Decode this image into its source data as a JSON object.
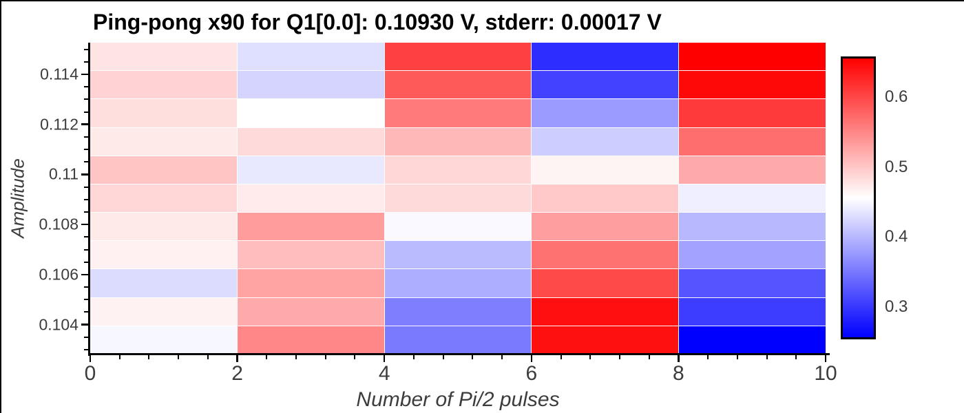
{
  "title": "Ping-pong x90 for Q1[0.0]: 0.10930 V, stderr: 0.00017 V",
  "colors": {
    "background": "#ffffff",
    "spine": "#000000",
    "title_text": "#000000",
    "label_text": "#3c3c3c",
    "frame_border": "#000000",
    "cell_seam": "#ffffff"
  },
  "chart_data": {
    "type": "heatmap",
    "title": "Ping-pong x90 for Q1[0.0]: 0.10930 V, stderr: 0.00017 V",
    "xlabel": "Number of Pi/2 pulses",
    "ylabel": "Amplitude",
    "colormap": "bwr",
    "vmin": 0.254,
    "vmax": 0.658,
    "x_range": [
      0,
      10
    ],
    "y_range": [
      0.102835,
      0.115265
    ],
    "x_ticks": [
      0,
      2,
      4,
      6,
      8,
      10
    ],
    "x_tick_labels": [
      "0",
      "2",
      "4",
      "6",
      "8",
      "10"
    ],
    "x_minor_step": 0.4,
    "y_ticks": [
      0.104,
      0.106,
      0.108,
      0.11,
      0.112,
      0.114
    ],
    "y_tick_labels": [
      "0.104",
      "0.106",
      "0.108",
      "0.11",
      "0.112",
      "0.114"
    ],
    "y_minor_step": 0.0005,
    "x_centers": [
      1,
      3,
      5,
      7,
      9
    ],
    "amplitudes_top_to_bottom": [
      0.1147,
      0.11357,
      0.11244,
      0.11131,
      0.11018,
      0.10905,
      0.10792,
      0.10679,
      0.10566,
      0.10453,
      0.1034
    ],
    "values": [
      [
        0.477,
        0.431,
        0.607,
        0.29,
        0.658
      ],
      [
        0.491,
        0.422,
        0.587,
        0.307,
        0.652
      ],
      [
        0.482,
        0.456,
        0.561,
        0.376,
        0.612
      ],
      [
        0.473,
        0.485,
        0.512,
        0.416,
        0.571
      ],
      [
        0.502,
        0.438,
        0.488,
        0.465,
        0.523
      ],
      [
        0.488,
        0.472,
        0.485,
        0.499,
        0.443
      ],
      [
        0.473,
        0.534,
        0.451,
        0.533,
        0.4
      ],
      [
        0.467,
        0.508,
        0.401,
        0.568,
        0.383
      ],
      [
        0.428,
        0.529,
        0.392,
        0.599,
        0.321
      ],
      [
        0.466,
        0.523,
        0.354,
        0.646,
        0.302
      ],
      [
        0.45,
        0.551,
        0.351,
        0.645,
        0.254
      ]
    ],
    "colorbar_ticks": [
      0.3,
      0.4,
      0.5,
      0.6
    ],
    "colorbar_tick_labels": [
      "0.3",
      "0.4",
      "0.5",
      "0.6"
    ],
    "legend_position": "right",
    "grid": false
  }
}
